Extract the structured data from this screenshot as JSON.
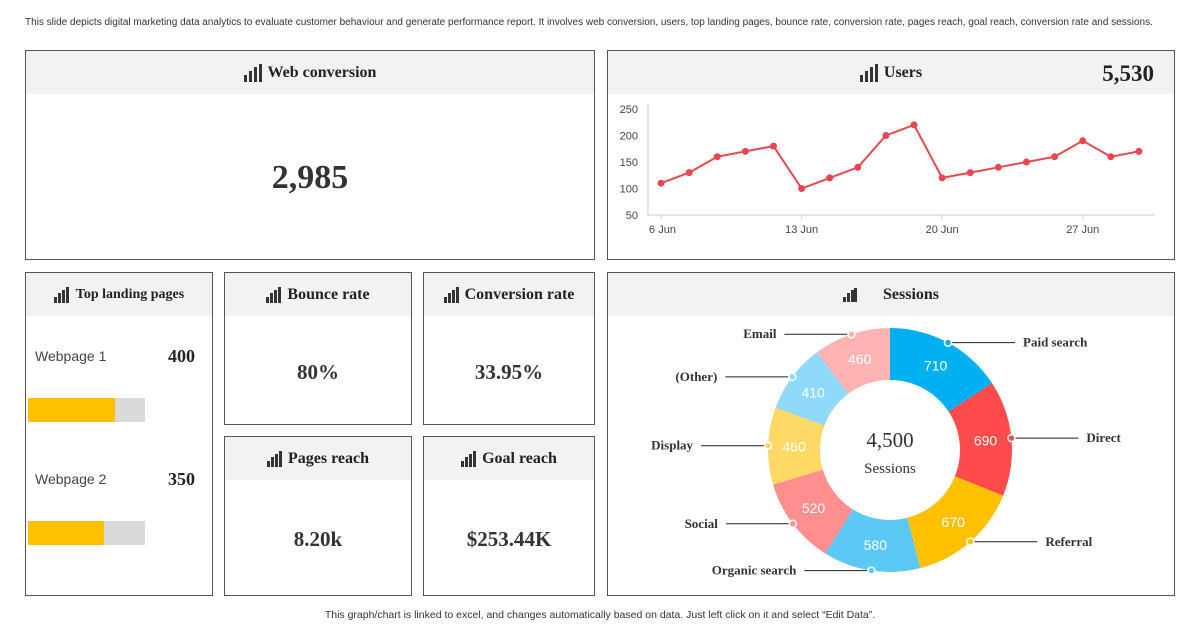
{
  "description": "This slide depicts digital marketing data analytics to evaluate customer behaviour and generate performance report. It involves web conversion, users, top landing pages, bounce rate, conversion rate, pages reach, goal reach, conversion rate and sessions.",
  "footer": "This graph/chart is linked to excel, and changes automatically based on data. Just left click on it and select “Edit Data”.",
  "web_conversion": {
    "title": "Web conversion",
    "value": "2,985"
  },
  "kpis": [
    {
      "title": "Bounce rate",
      "value": "80%"
    },
    {
      "title": "Conversion rate",
      "value": "33.95%"
    },
    {
      "title": "Pages reach",
      "value": "8.20k"
    },
    {
      "title": "Goal reach",
      "value": "$253.44K"
    }
  ],
  "landing": {
    "title": "Top landing pages",
    "categories": [
      "Webpage 1",
      "Webpage 2"
    ],
    "values": [
      400,
      350
    ],
    "color": "#ffc000",
    "xlim": [
      0,
      540
    ]
  },
  "chart_data": [
    {
      "type": "line",
      "title": "Users",
      "total": "5,530",
      "color": "#e8474f",
      "x": [
        6,
        7.4,
        8.8,
        10.2,
        11.6,
        13,
        14.4,
        15.8,
        17.2,
        18.6,
        20,
        21.4,
        22.8,
        24.2,
        25.6,
        27,
        28.4,
        29.8
      ],
      "series": [
        {
          "name": "Users",
          "color": "#e8474f",
          "values": [
            110,
            130,
            160,
            170,
            180,
            100,
            120,
            140,
            200,
            220,
            120,
            130,
            140,
            150,
            160,
            190,
            160,
            170
          ]
        }
      ],
      "xlim": [
        5.35,
        30.6
      ],
      "xticks": [
        {
          "value": 6,
          "label": "6 Jun"
        },
        {
          "value": 13,
          "label": "13 Jun"
        },
        {
          "value": 20,
          "label": "20 Jun"
        },
        {
          "value": 27,
          "label": "27 Jun"
        }
      ],
      "ylim": [
        50,
        250
      ],
      "yticks": [
        50,
        100,
        150,
        200,
        250
      ]
    },
    {
      "type": "donut",
      "title": "Sessions",
      "total": "4,500",
      "total_label": "Sessions",
      "categories": [
        "Paid search",
        "Direct",
        "Referral",
        "Organic search",
        "Social",
        "Display",
        "(Other)",
        "Email"
      ],
      "values": [
        710,
        690,
        670,
        580,
        520,
        460,
        410,
        460
      ],
      "colors": [
        "#00b0f0",
        "#ff4b4b",
        "#ffc000",
        "#5bc8f5",
        "#ff8f8f",
        "#ffd966",
        "#8fd9fa",
        "#ffb3b3"
      ]
    }
  ]
}
